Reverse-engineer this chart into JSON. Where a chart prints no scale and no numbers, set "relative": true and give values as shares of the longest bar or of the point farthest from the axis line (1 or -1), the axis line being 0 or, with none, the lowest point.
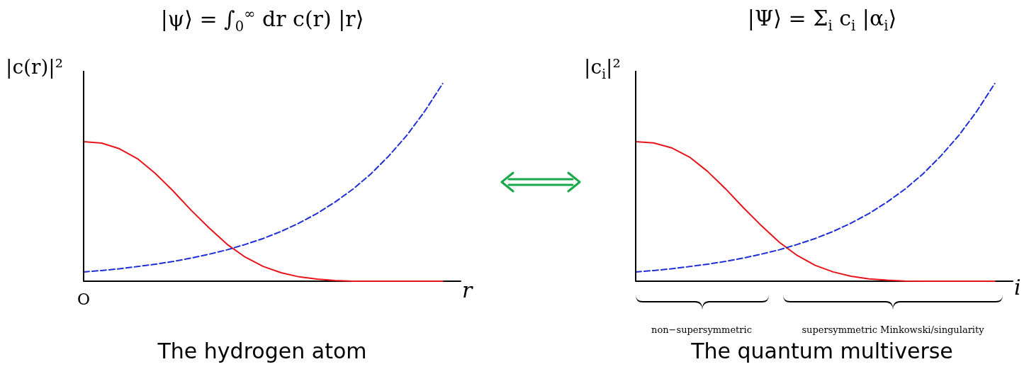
{
  "chart_data": [
    {
      "type": "line",
      "title": "|ψ⟩ = ∫$_{0}$$^{∞}$ dr c(r) |r⟩",
      "xlabel": "r",
      "ylabel": "|c(r)|²",
      "annotations": [
        "O",
        "The hydrogen atom"
      ],
      "relative": true,
      "marker": "none",
      "categories": [
        null,
        null,
        null,
        null,
        null,
        null,
        null,
        null,
        null,
        null,
        null,
        null,
        null,
        null,
        null,
        null,
        null,
        null,
        null,
        null,
        null,
        null
      ],
      "series": [
        {
          "color": "#e8141c",
          "line_style": "solid",
          "values": [
            0.706,
            0.699,
            0.67,
            0.62,
            0.545,
            0.455,
            0.358,
            0.269,
            0.186,
            0.122,
            0.075,
            0.043,
            0.022,
            0.011,
            0.004,
            0,
            0,
            0,
            0,
            0,
            0,
            null
          ]
        },
        {
          "color": "#1f2fd6",
          "line_style": "dashed",
          "values": [
            0.047,
            0.054,
            0.063,
            0.074,
            0.086,
            0.1,
            0.117,
            0.137,
            0.159,
            0.186,
            0.216,
            0.252,
            0.294,
            0.343,
            0.4,
            0.466,
            0.543,
            0.634,
            0.738,
            0.86,
            1.0,
            null
          ]
        }
      ]
    },
    {
      "type": "line",
      "title": "|Ψ⟩ = Σ$_{i}$ c$_{i}$ |α$_{i}$⟩",
      "xlabel": "i",
      "ylabel": "|c$_{i}$|²",
      "annotations": [
        "non−supersymmetric",
        "supersymmetric Minkowski/singularity",
        "The quantum multiverse"
      ],
      "relative": true,
      "marker": "none",
      "categories": [
        null,
        null,
        null,
        null,
        null,
        null,
        null,
        null,
        null,
        null,
        null,
        null,
        null,
        null,
        null,
        null,
        null,
        null,
        null,
        null,
        null,
        null
      ],
      "series": [
        {
          "color": "#e8141c",
          "line_style": "solid",
          "values": [
            0.706,
            0.7,
            0.675,
            0.628,
            0.556,
            0.468,
            0.372,
            0.281,
            0.197,
            0.13,
            0.08,
            0.047,
            0.025,
            0.012,
            0.005,
            0.001,
            0,
            0,
            0,
            0,
            0,
            null
          ]
        },
        {
          "color": "#1f2fd6",
          "line_style": "dashed",
          "values": [
            0.047,
            0.054,
            0.063,
            0.074,
            0.086,
            0.1,
            0.117,
            0.137,
            0.159,
            0.186,
            0.216,
            0.252,
            0.294,
            0.343,
            0.4,
            0.466,
            0.543,
            0.634,
            0.738,
            0.86,
            1.0,
            null
          ]
        }
      ]
    }
  ]
}
